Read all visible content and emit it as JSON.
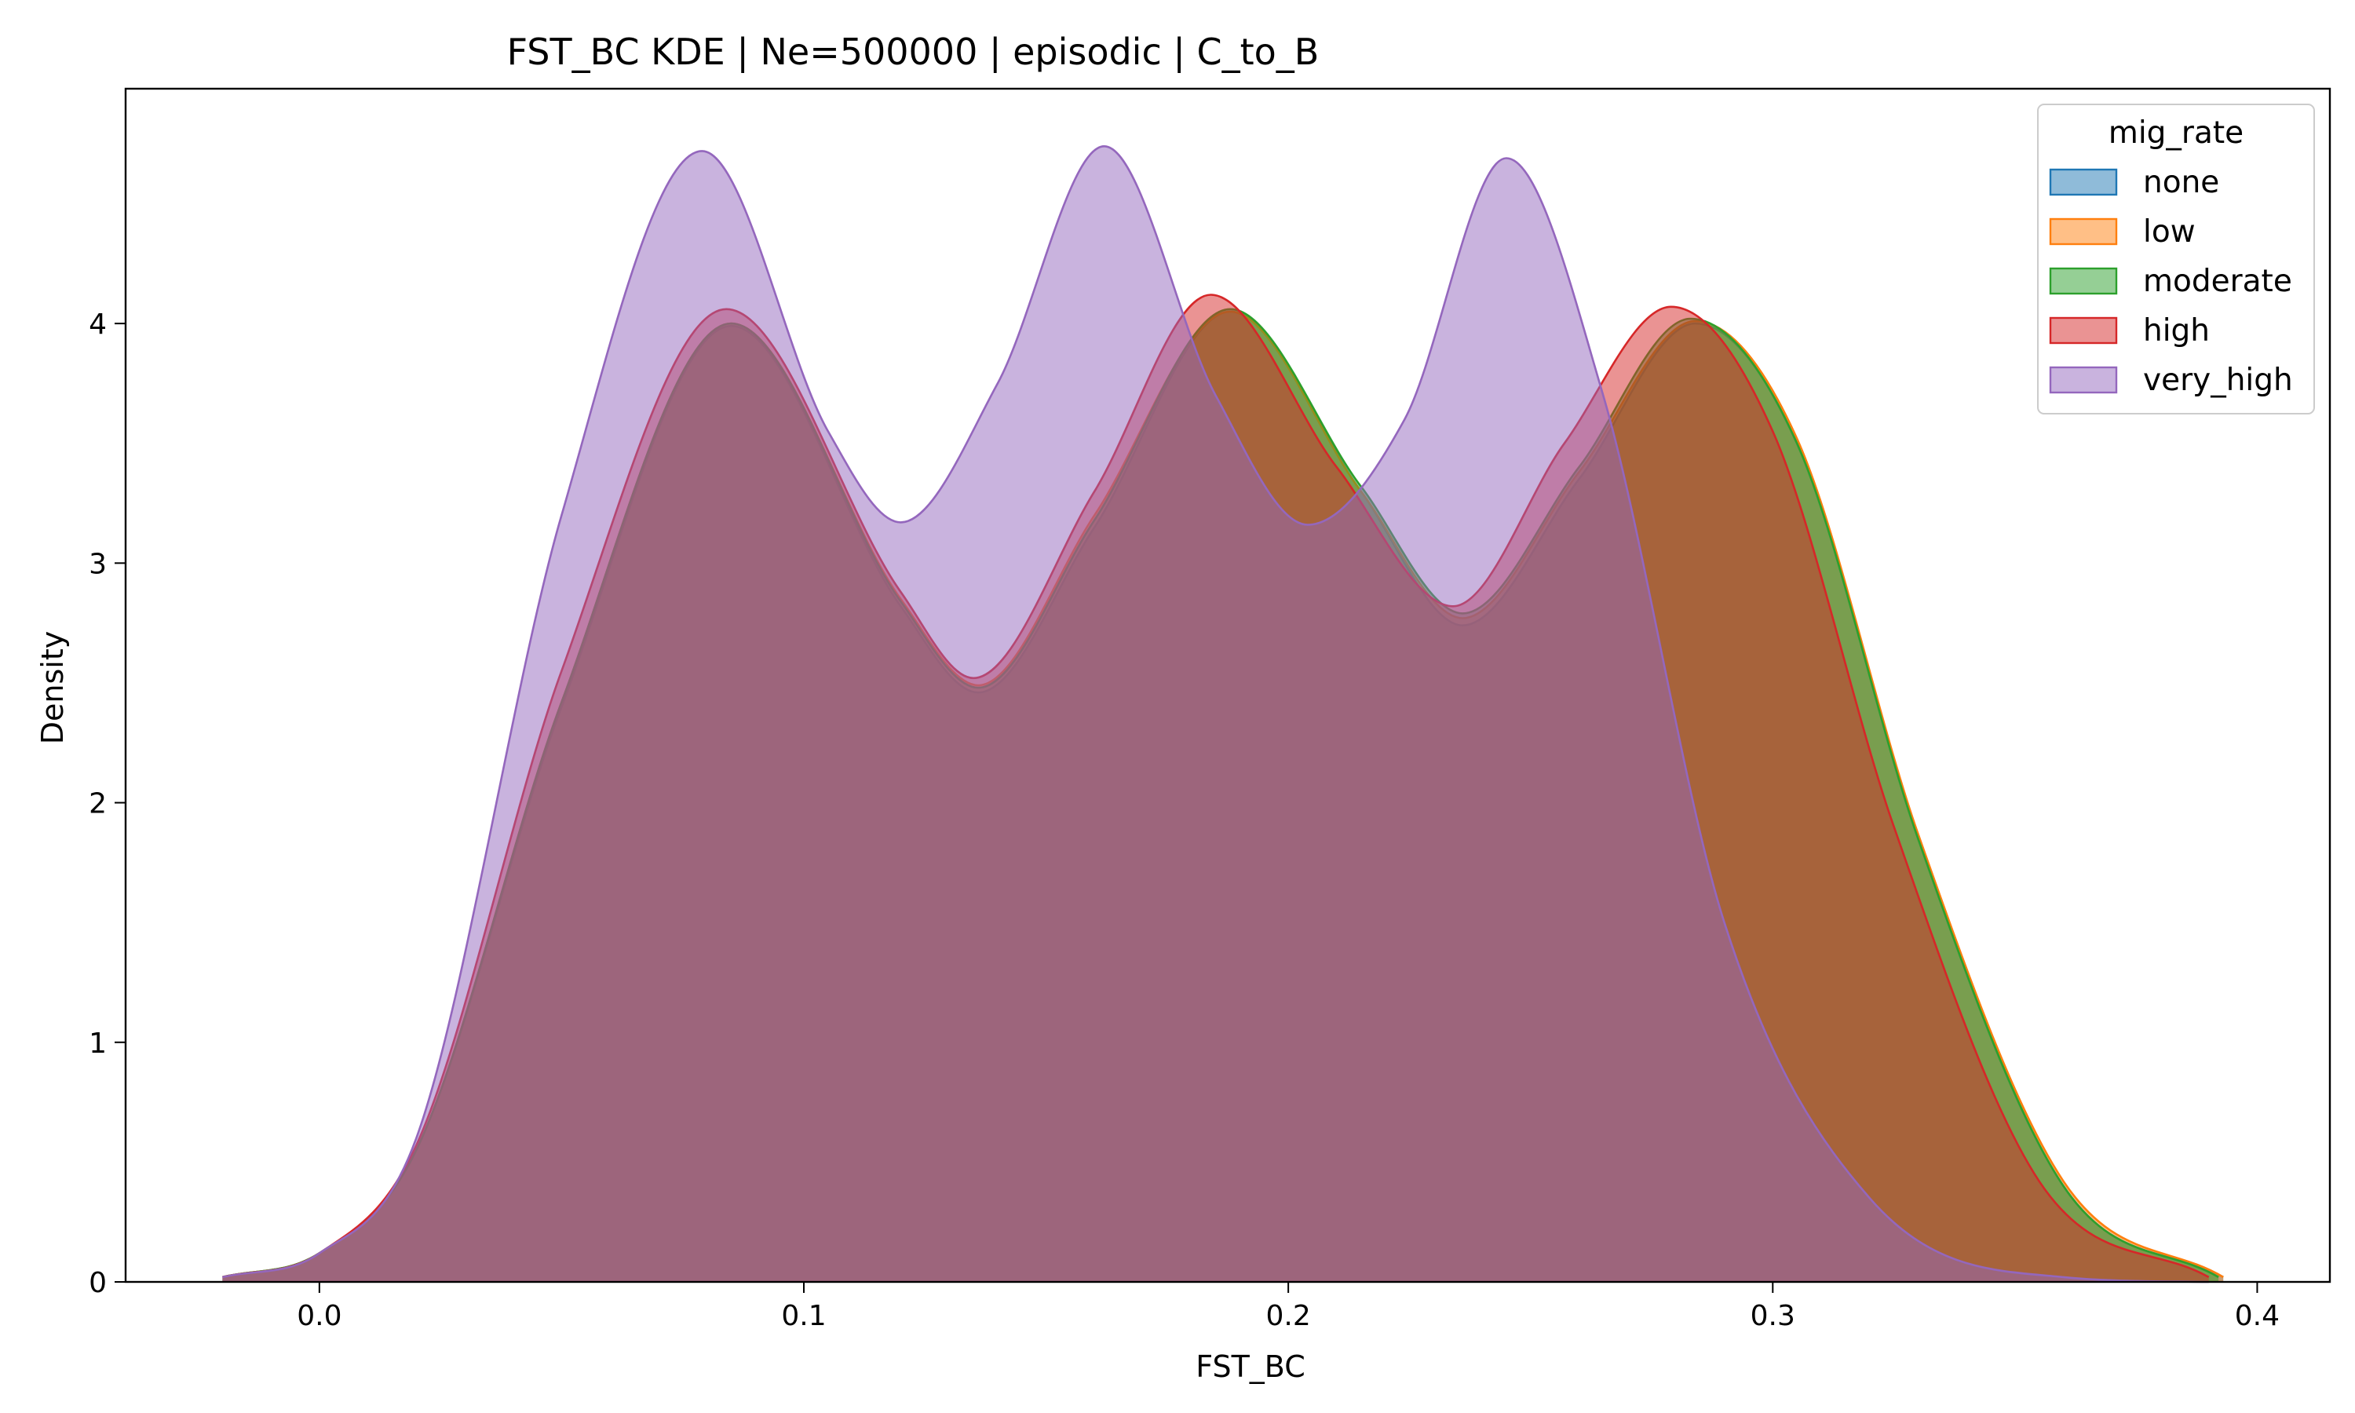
{
  "chart_data": {
    "type": "area",
    "title": "FST_BC KDE | Ne=500000 | episodic | C_to_B",
    "xlabel": "FST_BC",
    "ylabel": "Density",
    "xlim": [
      -0.04,
      0.415
    ],
    "ylim": [
      0,
      4.98
    ],
    "xticks": [
      0.0,
      0.1,
      0.2,
      0.3,
      0.4
    ],
    "xtick_labels": [
      "0.0",
      "0.1",
      "0.2",
      "0.3",
      "0.4"
    ],
    "yticks": [
      0,
      1,
      2,
      3,
      4
    ],
    "ytick_labels": [
      "0",
      "1",
      "2",
      "3",
      "4"
    ],
    "grid": false,
    "legend": {
      "title": "mig_rate",
      "placement": "top-right"
    },
    "series": [
      {
        "name": "none",
        "color": "#1f77b4",
        "x": [
          -0.02,
          0.0,
          0.02,
          0.05,
          0.085,
          0.12,
          0.136,
          0.16,
          0.188,
          0.215,
          0.236,
          0.26,
          0.284,
          0.305,
          0.33,
          0.36,
          0.393
        ],
        "y": [
          0.02,
          0.12,
          0.55,
          2.4,
          3.99,
          2.82,
          2.46,
          3.15,
          4.05,
          3.3,
          2.74,
          3.35,
          4.0,
          3.5,
          1.85,
          0.4,
          0.02
        ]
      },
      {
        "name": "low",
        "color": "#ff7f0e",
        "x": [
          -0.02,
          0.0,
          0.02,
          0.05,
          0.085,
          0.12,
          0.136,
          0.16,
          0.188,
          0.215,
          0.236,
          0.26,
          0.284,
          0.305,
          0.33,
          0.36,
          0.393
        ],
        "y": [
          0.02,
          0.12,
          0.55,
          2.42,
          4.0,
          2.85,
          2.49,
          3.2,
          4.05,
          3.3,
          2.77,
          3.38,
          4.01,
          3.52,
          1.87,
          0.42,
          0.02
        ]
      },
      {
        "name": "moderate",
        "color": "#2ca02c",
        "x": [
          -0.02,
          0.0,
          0.02,
          0.05,
          0.085,
          0.12,
          0.136,
          0.16,
          0.188,
          0.215,
          0.236,
          0.26,
          0.283,
          0.305,
          0.33,
          0.36,
          0.392
        ],
        "y": [
          0.02,
          0.12,
          0.55,
          2.42,
          4.0,
          2.84,
          2.48,
          3.18,
          4.06,
          3.32,
          2.79,
          3.4,
          4.02,
          3.5,
          1.85,
          0.4,
          0.02
        ]
      },
      {
        "name": "high",
        "color": "#d62728",
        "x": [
          -0.02,
          0.0,
          0.02,
          0.05,
          0.084,
          0.12,
          0.135,
          0.16,
          0.184,
          0.21,
          0.234,
          0.257,
          0.279,
          0.3,
          0.325,
          0.355,
          0.39
        ],
        "y": [
          0.02,
          0.12,
          0.57,
          2.55,
          4.06,
          2.88,
          2.52,
          3.3,
          4.12,
          3.4,
          2.82,
          3.5,
          4.07,
          3.55,
          1.9,
          0.42,
          0.02
        ]
      },
      {
        "name": "very_high",
        "color": "#9467bd",
        "x": [
          -0.02,
          0.0,
          0.02,
          0.05,
          0.079,
          0.105,
          0.12,
          0.14,
          0.162,
          0.185,
          0.204,
          0.224,
          0.245,
          0.265,
          0.29,
          0.32,
          0.36,
          0.39
        ],
        "y": [
          0.02,
          0.12,
          0.6,
          3.2,
          4.72,
          3.55,
          3.17,
          3.75,
          4.74,
          3.7,
          3.16,
          3.6,
          4.69,
          3.7,
          1.5,
          0.35,
          0.02,
          0.0
        ]
      }
    ]
  }
}
